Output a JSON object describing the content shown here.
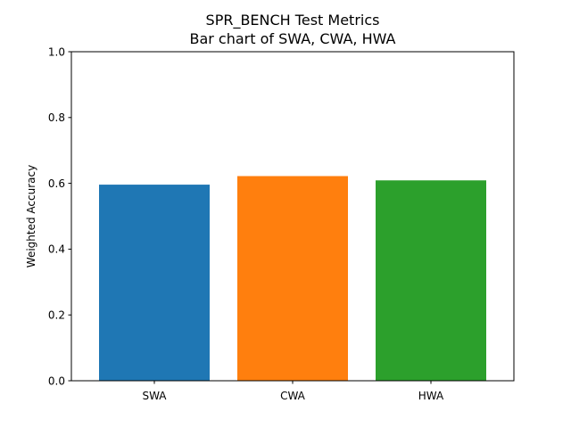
{
  "chart_data": {
    "type": "bar",
    "title": "SPR_BENCH Test Metrics",
    "subtitle": "Bar chart of SWA, CWA, HWA",
    "xlabel": "",
    "ylabel": "Weighted Accuracy",
    "categories": [
      "SWA",
      "CWA",
      "HWA"
    ],
    "values": [
      0.596,
      0.622,
      0.609
    ],
    "colors": [
      "#1f77b4",
      "#ff7f0e",
      "#2ca02c"
    ],
    "ylim": [
      0,
      1.0
    ],
    "yticks": [
      "0.0",
      "0.2",
      "0.4",
      "0.6",
      "0.8",
      "1.0"
    ],
    "grid": false,
    "legend": "none"
  }
}
